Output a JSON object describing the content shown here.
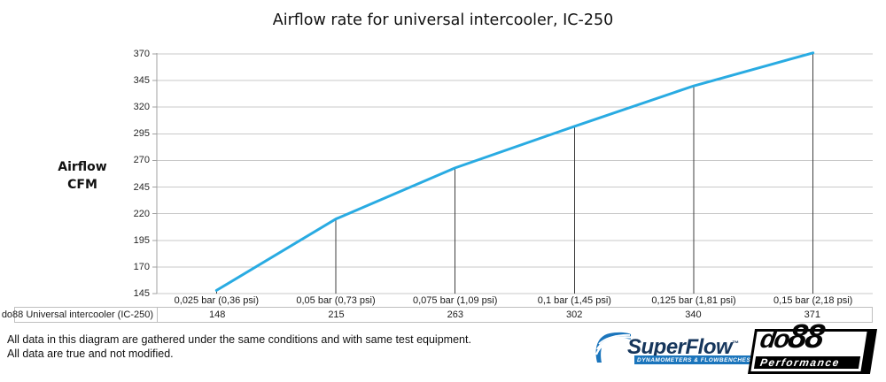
{
  "title": "Airflow rate for universal intercooler, IC-250",
  "y_axis_label_line1": "Airflow",
  "y_axis_label_line2": "CFM",
  "legend": "do88 Universal intercooler (IC-250)",
  "footer": {
    "line1": "All data in this diagram are gathered under the same conditions and with same test equipment.",
    "line2": "All data are true and not modified."
  },
  "logos": {
    "superflow": {
      "name": "SuperFlow",
      "trademark": "™",
      "tagline": "DYNAMOMETERS & FLOWBENCHES",
      "brand_color": "#1b75bc",
      "text_color": "#16365c"
    },
    "do88": {
      "name_part1": "do",
      "name_part2": "88",
      "tagline": "Performance"
    }
  },
  "chart_data": {
    "type": "line",
    "title": "Airflow rate for universal intercooler, IC-250",
    "ylabel": "Airflow CFM",
    "xlabel": "",
    "categories": [
      "0,025 bar (0,36 psi)",
      "0,05 bar (0,73 psi)",
      "0,075 bar (1,09 psi)",
      "0,1 bar (1,45 psi)",
      "0,125 bar (1,81 psi)",
      "0,15 bar (2,18 psi)"
    ],
    "series": [
      {
        "name": "do88 Universal intercooler (IC-250)",
        "values": [
          148,
          215,
          263,
          302,
          340,
          371
        ],
        "color": "#29abe2"
      }
    ],
    "y_ticks": [
      145,
      170,
      195,
      220,
      245,
      270,
      295,
      320,
      345,
      370
    ],
    "ylim": [
      145,
      370
    ],
    "grid": true,
    "droplines": true,
    "legend_position": "bottom-left-table",
    "gridline_color": "#c9c9c9",
    "axis_color": "#a0a0a0",
    "dropline_color": "#3f3f3f"
  }
}
